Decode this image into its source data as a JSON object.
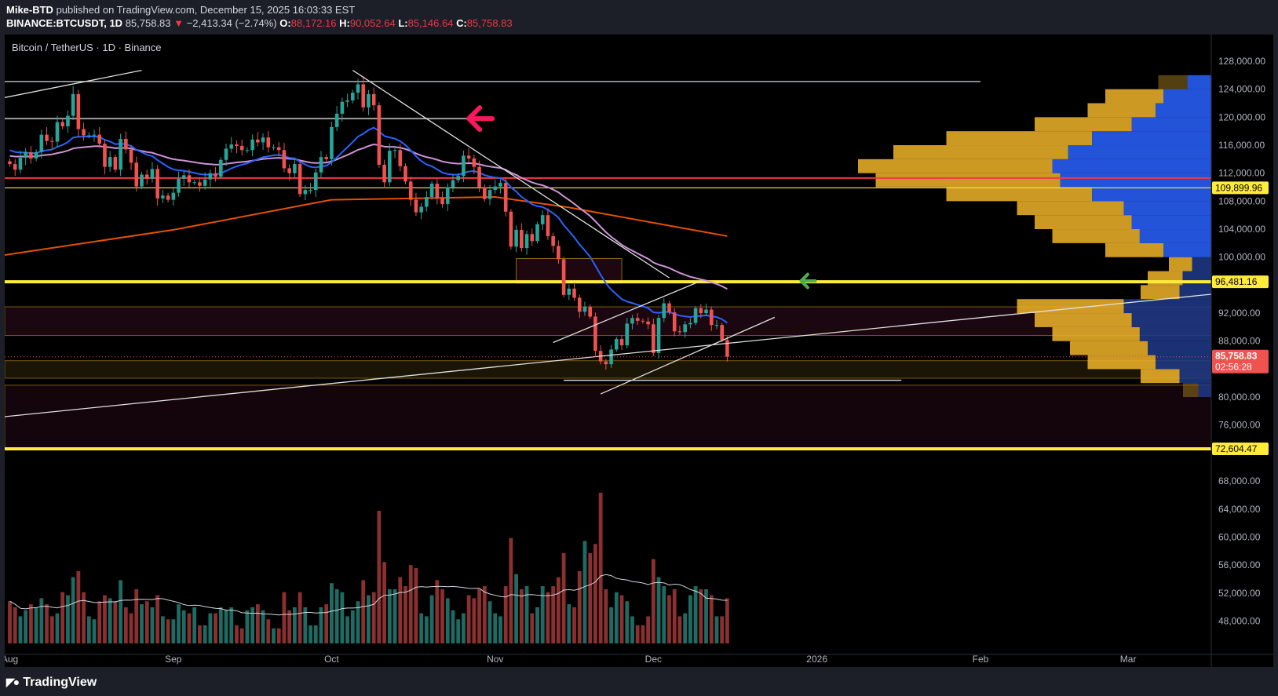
{
  "header": {
    "author": "Mike-BTD",
    "published": "published on TradingView.com, December 15, 2025 16:03:33 EST",
    "symbol": "BINANCE:BTCUSDT, 1D",
    "last": "85,758.83",
    "change": "−2,413.34 (−2.74%)",
    "o_label": "O:",
    "o": "88,172.16",
    "h_label": "H:",
    "h": "90,052.64",
    "l_label": "L:",
    "l": "85,146.64",
    "c_label": "C:",
    "c": "85,758.83"
  },
  "legend": "Bitcoin / TetherUS · 1D · Binance",
  "footer": {
    "brand": "TradingView",
    "icon": "tradingview-logo-icon"
  },
  "colors": {
    "up": "#26a69a",
    "down": "#ef5350",
    "ema_fast": "#2962ff",
    "ema_slow": "#ce93d8",
    "ma200": "#e65100",
    "yellow": "#ffeb3b",
    "red_line": "#f23645",
    "bg": "#000000"
  },
  "chart_data": {
    "type": "candlestick",
    "start_date": "2025-08-01",
    "closes": [
      113.3,
      112.5,
      114.2,
      115.0,
      114.1,
      115.0,
      117.5,
      116.6,
      116.5,
      119.3,
      118.7,
      120.2,
      123.3,
      118.3,
      117.4,
      117.4,
      117.5,
      116.2,
      112.9,
      114.3,
      112.5,
      116.9,
      115.4,
      113.5,
      110.1,
      111.8,
      111.2,
      112.6,
      108.4,
      108.8,
      108.2,
      109.2,
      111.2,
      111.7,
      110.7,
      110.7,
      110.2,
      111.1,
      112.0,
      111.5,
      113.9,
      115.5,
      116.1,
      115.9,
      115.3,
      115.3,
      116.8,
      116.4,
      117.1,
      115.7,
      115.7,
      115.3,
      112.7,
      112.0,
      113.3,
      109.0,
      109.6,
      109.6,
      112.1,
      114.3,
      114.0,
      118.6,
      120.5,
      122.2,
      122.4,
      123.5,
      124.7,
      121.4,
      123.3,
      121.7,
      113.2,
      110.7,
      115.2,
      115.3,
      113.0,
      110.8,
      108.2,
      106.4,
      107.2,
      108.6,
      110.5,
      108.4,
      107.6,
      110.0,
      111.0,
      111.6,
      114.5,
      114.1,
      112.9,
      110.0,
      108.3,
      109.6,
      110.1,
      110.6,
      106.5,
      101.5,
      103.9,
      101.3,
      103.3,
      102.3,
      104.7,
      106.0,
      103.0,
      101.6,
      99.7,
      94.6,
      95.5,
      94.2,
      92.2,
      92.9,
      91.5,
      86.6,
      85.1,
      84.7,
      86.8,
      88.3,
      87.4,
      90.5,
      91.3,
      90.9,
      90.8,
      90.4,
      86.3,
      91.3,
      93.4,
      92.1,
      89.4,
      89.3,
      90.4,
      90.6,
      92.7,
      92.0,
      92.5,
      90.3,
      90.3,
      88.17,
      85.76
    ],
    "price_unit": "thousand USDT",
    "volumes": [
      14,
      12,
      9,
      11,
      13,
      12,
      15,
      13,
      9,
      10,
      17,
      16,
      22,
      24,
      17,
      9,
      8,
      14,
      16,
      15,
      14,
      21,
      12,
      10,
      18,
      13,
      14,
      12,
      16,
      9,
      8,
      8,
      13,
      11,
      10,
      12,
      6,
      6,
      10,
      10,
      12,
      11,
      12,
      6,
      5,
      11,
      12,
      13,
      11,
      8,
      5,
      5,
      17,
      11,
      12,
      17,
      12,
      6,
      6,
      12,
      13,
      20,
      18,
      17,
      9,
      11,
      14,
      21,
      16,
      17,
      44,
      27,
      18,
      18,
      22,
      19,
      26,
      25,
      10,
      9,
      16,
      21,
      18,
      15,
      11,
      8,
      10,
      16,
      15,
      18,
      19,
      14,
      10,
      9,
      19,
      35,
      23,
      18,
      19,
      10,
      12,
      19,
      17,
      19,
      22,
      30,
      13,
      12,
      24,
      34,
      30,
      33,
      50,
      18,
      12,
      17,
      16,
      14,
      9,
      6,
      6,
      9,
      28,
      22,
      19,
      16,
      18,
      9,
      10,
      16,
      19,
      18,
      18,
      16,
      9,
      9,
      15
    ],
    "ma200": [
      [
        "2025-07-31",
        100.3
      ],
      [
        "2025-09-01",
        103.9
      ],
      [
        "2025-10-01",
        108.2
      ],
      [
        "2025-11-01",
        108.6
      ],
      [
        "2025-11-15",
        107.1
      ],
      [
        "2025-12-15",
        103.0
      ]
    ],
    "price_axis": {
      "ticks": [
        "128,000.00",
        "124,000.00",
        "120,000.00",
        "116,000.00",
        "112,000.00",
        "108,000.00",
        "104,000.00",
        "100,000.00",
        "92,000.00",
        "88,000.00",
        "80,000.00",
        "76,000.00",
        "68,000.00",
        "64,000.00",
        "60,000.00",
        "56,000.00",
        "52,000.00",
        "48,000.00"
      ],
      "tick_values": [
        128,
        124,
        120,
        116,
        112,
        108,
        104,
        100,
        92,
        88,
        80,
        76,
        68,
        64,
        60,
        56,
        52,
        48
      ]
    },
    "time_axis": [
      {
        "label": "Aug",
        "date": "2025-08-01"
      },
      {
        "label": "Sep",
        "date": "2025-09-01"
      },
      {
        "label": "Oct",
        "date": "2025-10-01"
      },
      {
        "label": "Nov",
        "date": "2025-11-01"
      },
      {
        "label": "Dec",
        "date": "2025-12-01"
      },
      {
        "label": "2026",
        "date": "2026-01-01"
      },
      {
        "label": "Feb",
        "date": "2026-02-01"
      },
      {
        "label": "Mar",
        "date": "2026-03-01"
      }
    ],
    "price_tags": [
      {
        "label": "109,899.96",
        "value": 109.89996,
        "kind": "yellow"
      },
      {
        "label": "96,481.16",
        "value": 96.48116,
        "kind": "yellow"
      },
      {
        "label": "72,604.47",
        "value": 72.60447,
        "kind": "yellow"
      }
    ],
    "last_price": {
      "label": "85,758.83",
      "countdown": "02:56:28",
      "value": 85.75883
    },
    "hlines": [
      {
        "price": 125.1,
        "from": "2025-07-31",
        "to": "2026-02-01",
        "color": "#d1d4dc",
        "w": 1.2
      },
      {
        "price": 119.8,
        "from": "2025-07-31",
        "to": "2025-10-27",
        "color": "#9e9e9e",
        "w": 2
      },
      {
        "price": 111.3,
        "from": "2025-07-31",
        "to": "2026-04-01",
        "color": "#f23645",
        "w": 2
      },
      {
        "price": 109.89996,
        "from": "2025-07-31",
        "to": "2026-04-01",
        "color": "#ffeb3b",
        "w": 1.2
      },
      {
        "price": 96.48116,
        "from": "2025-07-31",
        "to": "2026-04-01",
        "color": "#ffeb3b",
        "w": 4
      },
      {
        "price": 72.60447,
        "from": "2025-07-31",
        "to": "2026-04-01",
        "color": "#ffeb3b",
        "w": 4
      },
      {
        "price": 82.4,
        "from": "2025-11-14",
        "to": "2026-01-17",
        "color": "#d1d4dc",
        "w": 1.5
      }
    ],
    "zones": [
      {
        "top": 92.9,
        "bottom": 88.8,
        "fill": "#1a0710",
        "stroke": "#7a5a10"
      },
      {
        "top": 85.2,
        "bottom": 82.7,
        "fill": "#1b1506",
        "stroke": "#7a5a10"
      },
      {
        "top": 81.7,
        "bottom": 72.6,
        "fill": "#14040b",
        "stroke": "#7a5a10"
      },
      {
        "top": 99.8,
        "bottom": 96.3,
        "from": "2025-11-05",
        "to": "2025-11-25",
        "fill": "#1f0710",
        "stroke": "#8a6a10"
      }
    ],
    "trendlines": [
      [
        [
          "2025-07-31",
          122.8
        ],
        [
          "2025-08-26",
          126.7
        ]
      ],
      [
        [
          "2025-10-05",
          126.7
        ],
        [
          "2025-12-04",
          97.05
        ]
      ],
      [
        [
          "2025-11-12",
          87.8
        ],
        [
          "2025-12-10",
          96.6
        ]
      ],
      [
        [
          "2025-11-21",
          80.45
        ],
        [
          "2025-12-24",
          91.4
        ]
      ],
      [
        [
          "2025-07-31",
          77.2
        ],
        [
          "2026-03-17",
          94.7
        ]
      ]
    ],
    "arrows": [
      {
        "date": "2025-10-27",
        "price": 119.8,
        "color": "#f7195e",
        "dir": "left",
        "icon": "arrow-left-icon"
      },
      {
        "date": "2025-12-29",
        "price": 96.6,
        "color": "#4caf50",
        "dir": "left",
        "icon": "arrow-left-icon"
      }
    ],
    "volume_profile": {
      "bin_size": 2,
      "bins_from": 80,
      "total": [
        0.08,
        0.2,
        0.35,
        0.4,
        0.45,
        0.5,
        0.55,
        0.2,
        0.18,
        0.12,
        0.3,
        0.45,
        0.5,
        0.55,
        0.75,
        0.95,
        1.0,
        0.9,
        0.75,
        0.5,
        0.35,
        0.3,
        0.15
      ],
      "value_area": [
        82,
        124
      ]
    }
  }
}
